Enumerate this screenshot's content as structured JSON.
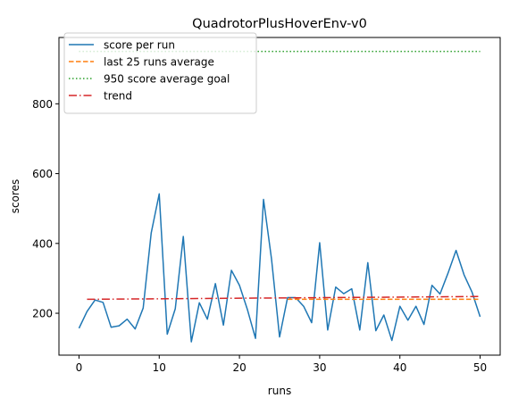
{
  "chart_data": {
    "type": "line",
    "title": "QuadrotorPlusHoverEnv-v0",
    "xlabel": "runs",
    "ylabel": "scores",
    "xlim": [
      -2.5,
      52.5
    ],
    "ylim": [
      80,
      990
    ],
    "xticks": [
      0,
      10,
      20,
      30,
      40,
      50
    ],
    "yticks": [
      200,
      400,
      600,
      800
    ],
    "grid": false,
    "legend_position": "top-left",
    "series": [
      {
        "name": "score per run",
        "color": "#1f77b4",
        "style": "solid",
        "x": [
          0,
          1,
          2,
          3,
          4,
          5,
          6,
          7,
          8,
          9,
          10,
          11,
          12,
          13,
          14,
          15,
          16,
          17,
          18,
          19,
          20,
          21,
          22,
          23,
          24,
          25,
          26,
          27,
          28,
          29,
          30,
          31,
          32,
          33,
          34,
          35,
          36,
          37,
          38,
          39,
          40,
          41,
          42,
          43,
          44,
          45,
          46,
          47,
          48,
          49,
          50
        ],
        "values": [
          157,
          205,
          238,
          231,
          160,
          164,
          183,
          155,
          215,
          430,
          542,
          140,
          213,
          420,
          118,
          230,
          183,
          285,
          166,
          323,
          280,
          210,
          128,
          526,
          355,
          132,
          245,
          245,
          220,
          173,
          402,
          152,
          275,
          256,
          270,
          152,
          345,
          150,
          195,
          122,
          220,
          180,
          220,
          168,
          280,
          255,
          315,
          380,
          310,
          260,
          190
        ]
      },
      {
        "name": "last 25 runs average",
        "color": "#ff7f0e",
        "style": "dashed",
        "x": [
          26,
          50
        ],
        "values": [
          240,
          240
        ]
      },
      {
        "name": "950 score average goal",
        "color": "#2ca02c",
        "style": "dotted",
        "x": [
          0,
          50
        ],
        "values": [
          950,
          950
        ]
      },
      {
        "name": "trend",
        "color": "#d62728",
        "style": "dashdot",
        "x": [
          1,
          50
        ],
        "values": [
          240,
          248
        ]
      }
    ]
  }
}
